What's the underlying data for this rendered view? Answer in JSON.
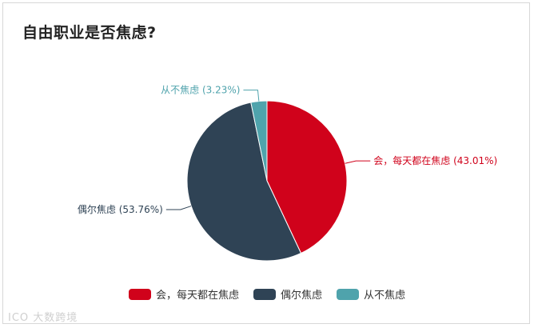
{
  "chart_data": {
    "type": "pie",
    "title": "自由职业是否焦虑?",
    "slices": [
      {
        "label": "会，每天都在焦虑",
        "value": 43.01,
        "percent_label": "(43.01%)",
        "color": "#d0021b"
      },
      {
        "label": "偶尔焦虑",
        "value": 53.76,
        "percent_label": "(53.76%)",
        "color": "#2f4355"
      },
      {
        "label": "从不焦虑",
        "value": 3.23,
        "percent_label": "(3.23%)",
        "color": "#4fa3ac"
      }
    ],
    "legend_position": "bottom-center"
  },
  "watermark": "ICO 大数跨境"
}
